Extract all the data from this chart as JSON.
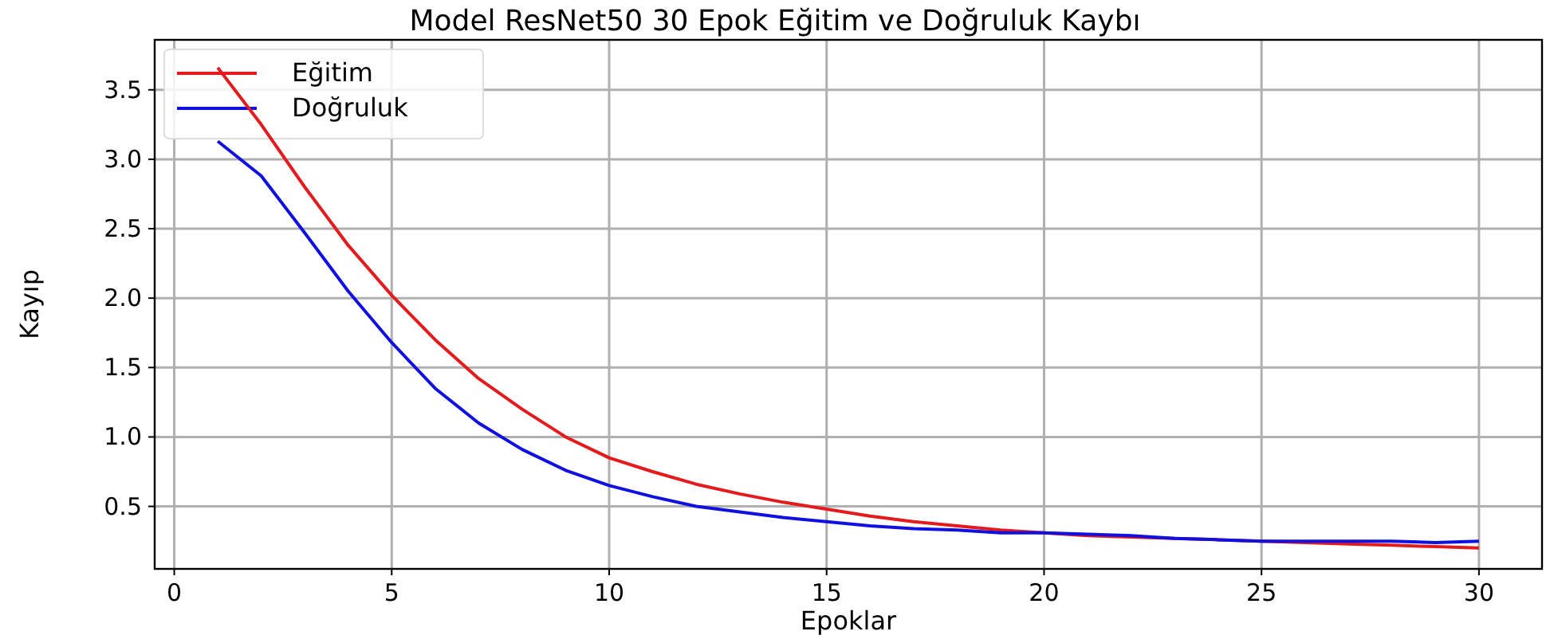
{
  "chart_data": {
    "type": "line",
    "title": "Model ResNet50 30 Epok Eğitim ve Doğruluk Kaybı",
    "xlabel": "Epoklar",
    "ylabel": "Kayıp",
    "x": [
      1,
      2,
      3,
      4,
      5,
      6,
      7,
      8,
      9,
      10,
      11,
      12,
      13,
      14,
      15,
      16,
      17,
      18,
      19,
      20,
      21,
      22,
      23,
      24,
      25,
      26,
      27,
      28,
      29,
      30
    ],
    "series": [
      {
        "name": "Eğitim",
        "color": "#e41a1c",
        "values": [
          3.66,
          3.25,
          2.8,
          2.38,
          2.02,
          1.7,
          1.42,
          1.2,
          1.0,
          0.85,
          0.75,
          0.66,
          0.59,
          0.53,
          0.48,
          0.43,
          0.39,
          0.36,
          0.33,
          0.31,
          0.29,
          0.28,
          0.27,
          0.26,
          0.25,
          0.24,
          0.23,
          0.22,
          0.21,
          0.2
        ]
      },
      {
        "name": "Doğruluk",
        "color": "#1010e0",
        "values": [
          3.13,
          2.88,
          2.47,
          2.05,
          1.68,
          1.35,
          1.1,
          0.91,
          0.76,
          0.65,
          0.57,
          0.5,
          0.46,
          0.42,
          0.39,
          0.36,
          0.34,
          0.33,
          0.31,
          0.31,
          0.3,
          0.29,
          0.27,
          0.26,
          0.25,
          0.25,
          0.25,
          0.25,
          0.24,
          0.25
        ]
      }
    ],
    "xlim": [
      -0.45,
      31.45
    ],
    "ylim": [
      0.05,
      3.86
    ],
    "xticks": [
      0,
      5,
      10,
      15,
      20,
      25,
      30
    ],
    "yticks": [
      {
        "value": 0.5,
        "label": "0.5"
      },
      {
        "value": 1,
        "label": "1.0"
      },
      {
        "value": 1.5,
        "label": "1.5"
      },
      {
        "value": 2,
        "label": "2.0"
      },
      {
        "value": 2.5,
        "label": "2.5"
      },
      {
        "value": 3,
        "label": "3.0"
      },
      {
        "value": 3.5,
        "label": "3.5"
      }
    ],
    "grid": true,
    "legend": "top left",
    "line_style": "solid",
    "marker": "none"
  }
}
